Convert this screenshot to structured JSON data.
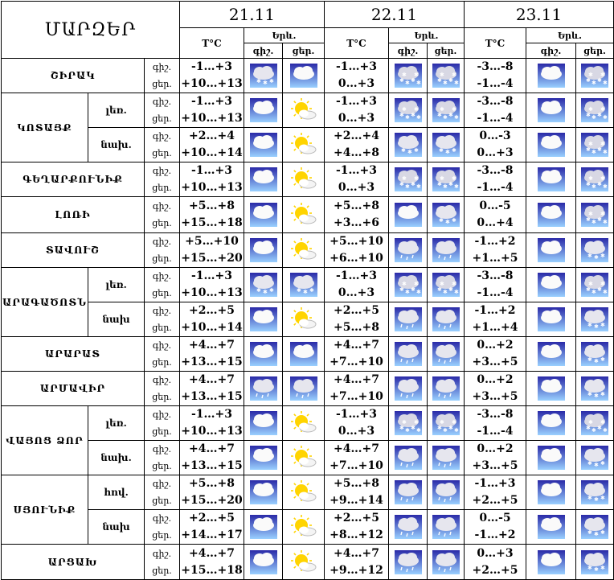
{
  "header": {
    "region_label": "ՄԱՐԶԵՐ",
    "dates": [
      "21.11",
      "22.11",
      "23.11"
    ],
    "temp_label": "T°C",
    "wx_label": "Երև.",
    "night_label": "գիշ.",
    "day_label": "ցեր."
  },
  "rows": [
    {
      "region": "ՇԻՐԱԿ",
      "sub": "",
      "dn": [
        "գիշ.",
        "ցեր."
      ],
      "t": [
        [
          "-1…+3",
          "+10…+13"
        ],
        [
          "-1…+3",
          "0…+3"
        ],
        [
          "-3…-8",
          "-1…-4"
        ]
      ],
      "ic": [
        [
          "cloud-snow",
          "cloud"
        ],
        [
          "snow",
          "snow"
        ],
        [
          "cloud",
          "snow"
        ]
      ]
    },
    {
      "region": "ԿՈՏԱՅՔ",
      "sub": "լեռ.",
      "dn": [
        "գիշ.",
        "ցեր."
      ],
      "t": [
        [
          "-1…+3",
          "+10…+13"
        ],
        [
          "-1…+3",
          "0…+3"
        ],
        [
          "-3…-8",
          "-1…-4"
        ]
      ],
      "ic": [
        [
          "cloud",
          "sun"
        ],
        [
          "snow",
          "snow"
        ],
        [
          "cloud",
          "snow"
        ]
      ]
    },
    {
      "region": "",
      "sub": "նախ.",
      "dn": [
        "գիշ.",
        "ցեր."
      ],
      "t": [
        [
          "+2…+4",
          "+10…+14"
        ],
        [
          "+2…+4",
          "+4…+8"
        ],
        [
          "0…-3",
          "0…+3"
        ]
      ],
      "ic": [
        [
          "cloud",
          "sun"
        ],
        [
          "cloud-snow",
          "cloud-snow"
        ],
        [
          "cloud",
          "snow"
        ]
      ]
    },
    {
      "region": "ԳԵՂԱՐՔՈՒՆԻՔ",
      "sub": "",
      "dn": [
        "գիշ.",
        "ցեր."
      ],
      "t": [
        [
          "-1…+3",
          "+10…+13"
        ],
        [
          "-1…+3",
          "0…+3"
        ],
        [
          "-3…-8",
          "-1…-4"
        ]
      ],
      "ic": [
        [
          "cloud",
          "sun"
        ],
        [
          "snow",
          "snow"
        ],
        [
          "cloud",
          "snow"
        ]
      ]
    },
    {
      "region": "ԼՈՌԻ",
      "sub": "",
      "dn": [
        "գիշ.",
        "ցեր."
      ],
      "t": [
        [
          "+5…+8",
          "+15…+18"
        ],
        [
          "+5…+8",
          "+3…+6"
        ],
        [
          "0…-5",
          "0…+4"
        ]
      ],
      "ic": [
        [
          "cloud",
          "sun"
        ],
        [
          "cloud",
          "cloud-snow"
        ],
        [
          "cloud",
          "snow"
        ]
      ]
    },
    {
      "region": "ՏԱՎՈՒՇ",
      "sub": "",
      "dn": [
        "գիշ.",
        "ցեր."
      ],
      "t": [
        [
          "+5…+10",
          "+15…+20"
        ],
        [
          "+5…+10",
          "+6…+10"
        ],
        [
          "-1…+2",
          "+1…+5"
        ]
      ],
      "ic": [
        [
          "cloud",
          "sun"
        ],
        [
          "cloud-rain",
          "cloud-rain"
        ],
        [
          "cloud",
          "cloud-snow"
        ]
      ]
    },
    {
      "region": "ԱՐԱԳԱԾՈՏՆ",
      "sub": "լեռ.",
      "dn": [
        "գիշ.",
        "ցեր."
      ],
      "t": [
        [
          "-1…+3",
          "+10…+13"
        ],
        [
          "-1…+3",
          "0…+3"
        ],
        [
          "-3…-8",
          "-1…-4"
        ]
      ],
      "ic": [
        [
          "cloud-snow",
          "cloud-snow"
        ],
        [
          "snow",
          "snow"
        ],
        [
          "cloud",
          "snow"
        ]
      ]
    },
    {
      "region": "",
      "sub": "նախ",
      "dn": [
        "գիշ.",
        "ցեր."
      ],
      "t": [
        [
          "+2…+5",
          "+10…+14"
        ],
        [
          "+2…+5",
          "+5…+8"
        ],
        [
          "-1…+2",
          "+1…+4"
        ]
      ],
      "ic": [
        [
          "cloud",
          "sun"
        ],
        [
          "cloud-rain",
          "cloud-rain"
        ],
        [
          "cloud",
          "cloud-snow"
        ]
      ]
    },
    {
      "region": "ԱՐԱՐԱՏ",
      "sub": "",
      "dn": [
        "գիշ.",
        "ցեր."
      ],
      "t": [
        [
          "+4…+7",
          "+13…+15"
        ],
        [
          "+4…+7",
          "+7…+10"
        ],
        [
          "0…+2",
          "+3…+5"
        ]
      ],
      "ic": [
        [
          "cloud",
          "cloud"
        ],
        [
          "cloud-rain",
          "cloud-rain"
        ],
        [
          "cloud",
          "cloud-snow"
        ]
      ]
    },
    {
      "region": "ԱՐՄԱՎԻՐ",
      "sub": "",
      "dn": [
        "գիշ.",
        "ցեր."
      ],
      "t": [
        [
          "+4…+7",
          "+13…+15"
        ],
        [
          "+4…+7",
          "+7…+10"
        ],
        [
          "0…+2",
          "+3…+5"
        ]
      ],
      "ic": [
        [
          "cloud-rain",
          "cloud-rain"
        ],
        [
          "cloud-rain",
          "cloud-rain"
        ],
        [
          "cloud",
          "cloud-snow"
        ]
      ]
    },
    {
      "region": "ՎԱՅՈՑ ՁՈՐ",
      "sub": "լեռ.",
      "dn": [
        "գիշ.",
        "ցեր."
      ],
      "t": [
        [
          "-1…+3",
          "+10…+13"
        ],
        [
          "-1…+3",
          "0…+3"
        ],
        [
          "-3…-8",
          "-1…-4"
        ]
      ],
      "ic": [
        [
          "cloud",
          "sun"
        ],
        [
          "snow",
          "snow"
        ],
        [
          "cloud",
          "snow"
        ]
      ]
    },
    {
      "region": "",
      "sub": "նախ.",
      "dn": [
        "գիշ.",
        "ցեր."
      ],
      "t": [
        [
          "+4…+7",
          "+13…+15"
        ],
        [
          "+4…+7",
          "+7…+10"
        ],
        [
          "0…+2",
          "+3…+5"
        ]
      ],
      "ic": [
        [
          "cloud",
          "sun"
        ],
        [
          "cloud-rain",
          "cloud-rain"
        ],
        [
          "cloud",
          "cloud-snow"
        ]
      ]
    },
    {
      "region": "ՍՅՈՒՆԻՔ",
      "sub": "հով.",
      "dn": [
        "գիշ.",
        "ցեր."
      ],
      "t": [
        [
          "+5…+8",
          "+15…+20"
        ],
        [
          "+5…+8",
          "+9…+14"
        ],
        [
          "-1…+3",
          "+2…+5"
        ]
      ],
      "ic": [
        [
          "cloud",
          "sun"
        ],
        [
          "cloud-rain",
          "cloud-rain"
        ],
        [
          "cloud",
          "cloud-snow"
        ]
      ]
    },
    {
      "region": "",
      "sub": "նախ",
      "dn": [
        "գիշ.",
        "ցեր."
      ],
      "t": [
        [
          "+2…+5",
          "+14…+17"
        ],
        [
          "+2…+5",
          "+8…+12"
        ],
        [
          "0…-5",
          "-1…+2"
        ]
      ],
      "ic": [
        [
          "cloud",
          "sun"
        ],
        [
          "cloud-rain",
          "cloud-rain"
        ],
        [
          "cloud",
          "cloud-snow"
        ]
      ]
    },
    {
      "region": "ԱՐՑԱԽ",
      "sub": "",
      "dn": [
        "գիշ.",
        "ցեր."
      ],
      "t": [
        [
          "+4…+7",
          "+15…+18"
        ],
        [
          "+4…+7",
          "+9…+12"
        ],
        [
          "0…+3",
          "+2…+5"
        ]
      ],
      "ic": [
        [
          "cloud",
          "sun"
        ],
        [
          "cloud-rain",
          "cloud-rain"
        ],
        [
          "cloud",
          "cloud-snow"
        ]
      ]
    }
  ],
  "colors": {
    "sky": "#2a2aa8",
    "sky_light": "#9ad0ff",
    "sun": "#ffd400"
  }
}
